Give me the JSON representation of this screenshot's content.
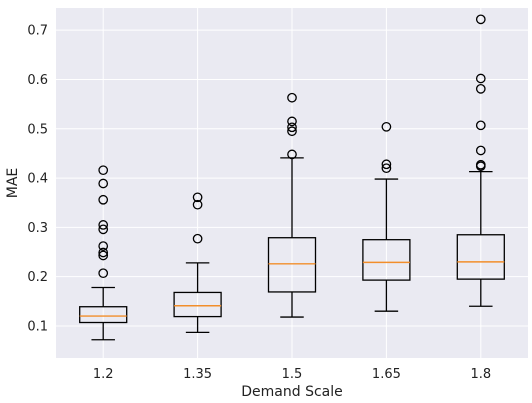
{
  "chart_data": {
    "type": "box",
    "xlabel": "Demand Scale",
    "ylabel": "MAE",
    "ylim": [
      0.035,
      0.745
    ],
    "yticks": [
      0.1,
      0.2,
      0.3,
      0.4,
      0.5,
      0.6,
      0.7
    ],
    "grid": true,
    "categories": [
      "1.2",
      "1.35",
      "1.5",
      "1.65",
      "1.8"
    ],
    "boxes": [
      {
        "category": "1.2",
        "whisker_low": 0.072,
        "q1": 0.107,
        "median": 0.12,
        "q3": 0.139,
        "whisker_high": 0.178,
        "outliers": [
          0.207,
          0.243,
          0.249,
          0.262,
          0.296,
          0.305,
          0.356,
          0.389,
          0.416
        ]
      },
      {
        "category": "1.35",
        "whisker_low": 0.087,
        "q1": 0.119,
        "median": 0.141,
        "q3": 0.168,
        "whisker_high": 0.228,
        "outliers": [
          0.277,
          0.346,
          0.361
        ]
      },
      {
        "category": "1.5",
        "whisker_low": 0.118,
        "q1": 0.169,
        "median": 0.226,
        "q3": 0.279,
        "whisker_high": 0.441,
        "outliers": [
          0.448,
          0.495,
          0.503,
          0.515,
          0.563
        ]
      },
      {
        "category": "1.65",
        "whisker_low": 0.13,
        "q1": 0.193,
        "median": 0.229,
        "q3": 0.275,
        "whisker_high": 0.398,
        "outliers": [
          0.42,
          0.428,
          0.504
        ]
      },
      {
        "category": "1.8",
        "whisker_low": 0.14,
        "q1": 0.195,
        "median": 0.23,
        "q3": 0.285,
        "whisker_high": 0.413,
        "outliers": [
          0.424,
          0.427,
          0.456,
          0.507,
          0.581,
          0.602,
          0.722
        ]
      }
    ],
    "colors": {
      "plot_background": "#eaeaf2",
      "grid": "#ffffff",
      "box": "#000000",
      "median": "#f28e2b",
      "outlier": "#000000"
    }
  }
}
